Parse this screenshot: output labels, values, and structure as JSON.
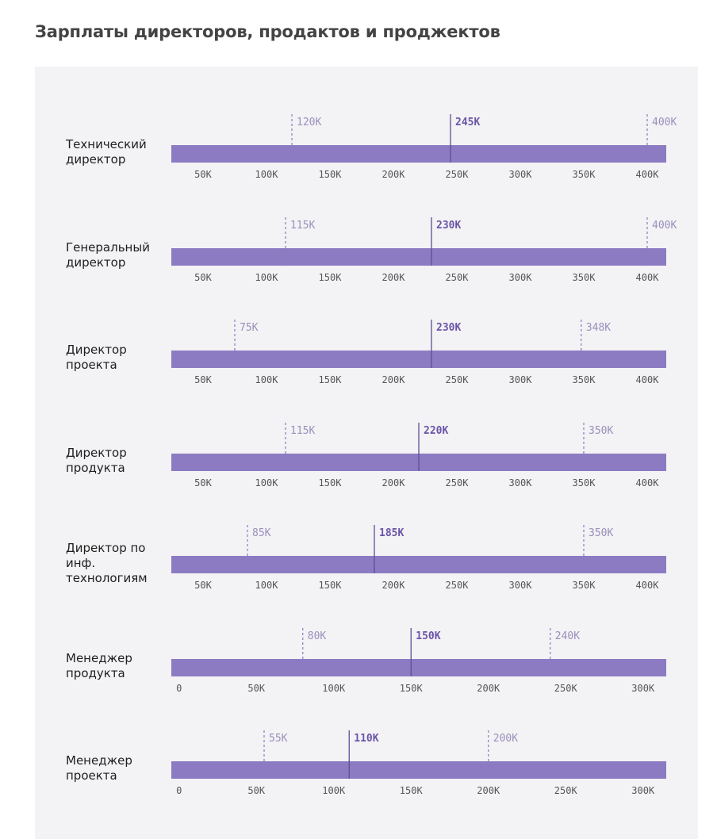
{
  "title": "Зарплаты директоров, продактов и проджектов",
  "colors": {
    "bar": "#8c7bc3",
    "median_label": "#6a55a8",
    "range_label": "#9a8fbd",
    "dashed": "#8c7bc3",
    "median_line": "#5f4d96"
  },
  "chart_data": {
    "type": "range-bar",
    "title": "Зарплаты директоров, продактов и проджектов",
    "rows": [
      {
        "label": "Технический\nдиректор",
        "xlim": [
          25,
          415
        ],
        "ticks": [
          50,
          100,
          150,
          200,
          250,
          300,
          350,
          400
        ],
        "tick_labels": [
          "50K",
          "100K",
          "150K",
          "200K",
          "250K",
          "300K",
          "350K",
          "400K"
        ],
        "low": 120,
        "median": 245,
        "high": 400,
        "low_label": "120K",
        "median_label": "245K",
        "high_label": "400K"
      },
      {
        "label": "Генеральный\nдиректор",
        "xlim": [
          25,
          415
        ],
        "ticks": [
          50,
          100,
          150,
          200,
          250,
          300,
          350,
          400
        ],
        "tick_labels": [
          "50K",
          "100K",
          "150K",
          "200K",
          "250K",
          "300K",
          "350K",
          "400K"
        ],
        "low": 115,
        "median": 230,
        "high": 400,
        "low_label": "115K",
        "median_label": "230K",
        "high_label": "400K"
      },
      {
        "label": "Директор\nпроекта",
        "xlim": [
          25,
          415
        ],
        "ticks": [
          50,
          100,
          150,
          200,
          250,
          300,
          350,
          400
        ],
        "tick_labels": [
          "50K",
          "100K",
          "150K",
          "200K",
          "250K",
          "300K",
          "350K",
          "400K"
        ],
        "low": 75,
        "median": 230,
        "high": 348,
        "low_label": "75K",
        "median_label": "230K",
        "high_label": "348K"
      },
      {
        "label": "Директор\nпродукта",
        "xlim": [
          25,
          415
        ],
        "ticks": [
          50,
          100,
          150,
          200,
          250,
          300,
          350,
          400
        ],
        "tick_labels": [
          "50K",
          "100K",
          "150K",
          "200K",
          "250K",
          "300K",
          "350K",
          "400K"
        ],
        "low": 115,
        "median": 220,
        "high": 350,
        "low_label": "115K",
        "median_label": "220K",
        "high_label": "350K"
      },
      {
        "label": "Директор по\nинф.\nтехнологиям",
        "xlim": [
          25,
          415
        ],
        "ticks": [
          50,
          100,
          150,
          200,
          250,
          300,
          350,
          400
        ],
        "tick_labels": [
          "50K",
          "100K",
          "150K",
          "200K",
          "250K",
          "300K",
          "350K",
          "400K"
        ],
        "low": 85,
        "median": 185,
        "high": 350,
        "low_label": "85K",
        "median_label": "185K",
        "high_label": "350K"
      },
      {
        "label": "Менеджер\nпродукта",
        "xlim": [
          -5,
          315
        ],
        "ticks": [
          0,
          50,
          100,
          150,
          200,
          250,
          300
        ],
        "tick_labels": [
          "0",
          "50K",
          "100K",
          "150K",
          "200K",
          "250K",
          "300K"
        ],
        "low": 80,
        "median": 150,
        "high": 240,
        "low_label": "80K",
        "median_label": "150K",
        "high_label": "240K"
      },
      {
        "label": "Менеджер\nпроекта",
        "xlim": [
          -5,
          315
        ],
        "ticks": [
          0,
          50,
          100,
          150,
          200,
          250,
          300
        ],
        "tick_labels": [
          "0",
          "50K",
          "100K",
          "150K",
          "200K",
          "250K",
          "300K"
        ],
        "low": 55,
        "median": 110,
        "high": 200,
        "low_label": "55K",
        "median_label": "110K",
        "high_label": "200K"
      }
    ]
  }
}
